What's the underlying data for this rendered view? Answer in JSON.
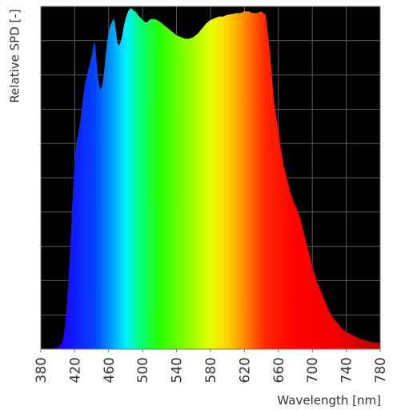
{
  "chart_data": {
    "type": "area",
    "title": "",
    "xlabel": "Wavelength [nm]",
    "ylabel": "Relative SPD [-]",
    "xlim": [
      380,
      780
    ],
    "ylim": [
      0,
      1
    ],
    "x_ticks": [
      380,
      420,
      460,
      500,
      540,
      580,
      620,
      660,
      700,
      740,
      780
    ],
    "x_tick_labels": [
      "380",
      "420",
      "460",
      "500",
      "540",
      "580",
      "620",
      "660",
      "700",
      "740",
      "780"
    ],
    "grid": true,
    "y_gridlines": 10,
    "background_color": "#000000",
    "grid_color": "#5a5a5a",
    "fill": "wavelength-spectrum-gradient",
    "series": [
      {
        "x": [
          380,
          385,
          390,
          395,
          400,
          402,
          404,
          406,
          408,
          410,
          412,
          414,
          416,
          418,
          420,
          422,
          424,
          426,
          428,
          430,
          432,
          434,
          436,
          438,
          440,
          442,
          444,
          446,
          448,
          450,
          452,
          454,
          456,
          458,
          460,
          462,
          464,
          466,
          468,
          470,
          472,
          474,
          476,
          478,
          480,
          482,
          484,
          486,
          488,
          490,
          492,
          494,
          496,
          498,
          500,
          502,
          504,
          506,
          508,
          510,
          515,
          520,
          525,
          530,
          535,
          540,
          545,
          550,
          555,
          560,
          565,
          570,
          575,
          580,
          585,
          590,
          595,
          600,
          605,
          610,
          615,
          620,
          625,
          630,
          635,
          640,
          645,
          650,
          655,
          660,
          662,
          664,
          666,
          668,
          670,
          672,
          674,
          676,
          678,
          680,
          682,
          684,
          686,
          688,
          690,
          692,
          694,
          696,
          698,
          700,
          705,
          710,
          715,
          720,
          725,
          730,
          735,
          740,
          745,
          750,
          755,
          760,
          765,
          770,
          775,
          780
        ],
        "values": [
          0.0,
          0.0,
          0.0,
          0.003,
          0.006,
          0.01,
          0.016,
          0.03,
          0.06,
          0.11,
          0.18,
          0.27,
          0.37,
          0.47,
          0.56,
          0.61,
          0.63,
          0.66,
          0.7,
          0.74,
          0.78,
          0.8,
          0.82,
          0.84,
          0.86,
          0.89,
          0.9,
          0.83,
          0.78,
          0.76,
          0.77,
          0.8,
          0.85,
          0.9,
          0.93,
          0.95,
          0.96,
          0.97,
          0.94,
          0.9,
          0.89,
          0.9,
          0.92,
          0.95,
          0.97,
          0.985,
          0.995,
          1.0,
          0.997,
          0.99,
          0.99,
          0.98,
          0.975,
          0.97,
          0.965,
          0.96,
          0.958,
          0.96,
          0.965,
          0.968,
          0.967,
          0.96,
          0.95,
          0.94,
          0.93,
          0.92,
          0.915,
          0.91,
          0.91,
          0.915,
          0.925,
          0.94,
          0.955,
          0.965,
          0.97,
          0.975,
          0.975,
          0.98,
          0.982,
          0.985,
          0.985,
          0.99,
          0.99,
          0.985,
          0.985,
          0.99,
          0.98,
          0.87,
          0.72,
          0.64,
          0.6,
          0.57,
          0.54,
          0.52,
          0.5,
          0.48,
          0.46,
          0.445,
          0.43,
          0.42,
          0.41,
          0.395,
          0.38,
          0.36,
          0.34,
          0.32,
          0.3,
          0.28,
          0.26,
          0.24,
          0.2,
          0.17,
          0.14,
          0.11,
          0.09,
          0.075,
          0.06,
          0.05,
          0.045,
          0.038,
          0.032,
          0.028,
          0.024,
          0.021,
          0.019,
          0.018
        ]
      }
    ]
  }
}
